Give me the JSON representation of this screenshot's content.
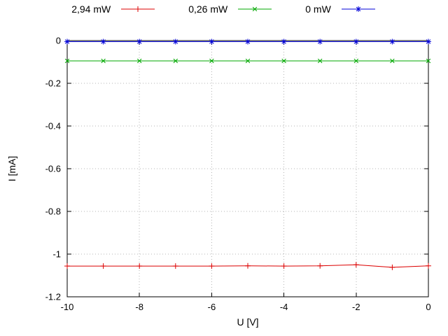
{
  "chart_data": {
    "type": "line",
    "title": "",
    "xlabel": "U [V]",
    "ylabel": "I [mA]",
    "xlim": [
      -10,
      0
    ],
    "ylim": [
      -1.2,
      0
    ],
    "grid": true,
    "legend_position": "top-center-outside",
    "xticks": [
      -10,
      -8,
      -6,
      -4,
      -2,
      0
    ],
    "xtick_labels": [
      "-10",
      "-8",
      "-6",
      "-4",
      "-2",
      "0"
    ],
    "yticks": [
      0,
      -0.2,
      -0.4,
      -0.6,
      -0.8,
      -1,
      -1.2
    ],
    "ytick_labels": [
      "0",
      "-0.2",
      "-0.4",
      "-0.6",
      "-0.8",
      "-1",
      "-1.2"
    ],
    "x": [
      -10,
      -9,
      -8,
      -7,
      -6,
      -5,
      -4,
      -3,
      -2,
      -1,
      0
    ],
    "series": [
      {
        "name": "2,94 mW",
        "color": "#dc0000",
        "marker": "plus",
        "values": [
          -1.056,
          -1.056,
          -1.056,
          -1.056,
          -1.056,
          -1.055,
          -1.056,
          -1.055,
          -1.05,
          -1.062,
          -1.055
        ]
      },
      {
        "name": "0,26 mW",
        "color": "#00a800",
        "marker": "x",
        "values": [
          -0.095,
          -0.095,
          -0.095,
          -0.095,
          -0.095,
          -0.095,
          -0.095,
          -0.095,
          -0.095,
          -0.095,
          -0.095
        ]
      },
      {
        "name": "0 mW",
        "color": "#0000d8",
        "marker": "asterisk",
        "values": [
          -0.005,
          -0.005,
          -0.005,
          -0.005,
          -0.005,
          -0.005,
          -0.005,
          -0.005,
          -0.005,
          -0.005,
          -0.005
        ]
      }
    ],
    "plot_bg": "#ffffff",
    "grid_color": "#b4b4b4",
    "border_color": "#000000"
  }
}
